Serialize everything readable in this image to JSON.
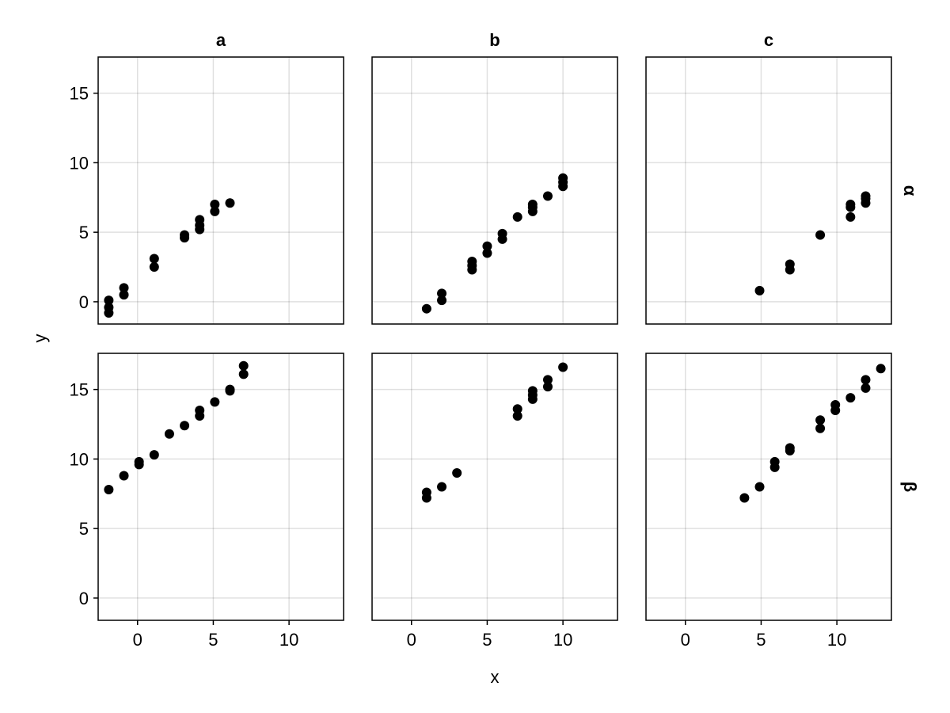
{
  "chart_data": {
    "type": "scatter",
    "xlabel": "x",
    "ylabel": "y",
    "xlim": [
      -2.6,
      13.6
    ],
    "ylim": [
      -1.6,
      17.6
    ],
    "xticks": [
      0,
      5,
      10
    ],
    "yticks": [
      0,
      5,
      10,
      15
    ],
    "grid": true,
    "column_titles": [
      "a",
      "b",
      "c"
    ],
    "row_titles": [
      "α",
      "β"
    ],
    "facets": [
      {
        "row": "α",
        "col": "a",
        "points": [
          [
            -1.9,
            -0.8
          ],
          [
            -1.9,
            -0.4
          ],
          [
            -1.9,
            0.1
          ],
          [
            -0.9,
            0.5
          ],
          [
            -0.9,
            1.0
          ],
          [
            1.1,
            2.5
          ],
          [
            1.1,
            3.1
          ],
          [
            3.1,
            4.6
          ],
          [
            3.1,
            4.8
          ],
          [
            4.1,
            5.2
          ],
          [
            4.1,
            5.5
          ],
          [
            4.1,
            5.9
          ],
          [
            5.1,
            6.5
          ],
          [
            5.1,
            7.0
          ],
          [
            6.1,
            7.1
          ]
        ]
      },
      {
        "row": "α",
        "col": "b",
        "points": [
          [
            1.0,
            -0.5
          ],
          [
            2.0,
            0.1
          ],
          [
            2.0,
            0.6
          ],
          [
            4.0,
            2.3
          ],
          [
            4.0,
            2.6
          ],
          [
            4.0,
            2.9
          ],
          [
            5.0,
            3.5
          ],
          [
            5.0,
            4.0
          ],
          [
            6.0,
            4.5
          ],
          [
            6.0,
            4.9
          ],
          [
            7.0,
            6.1
          ],
          [
            8.0,
            6.5
          ],
          [
            8.0,
            6.8
          ],
          [
            8.0,
            7.0
          ],
          [
            9.0,
            7.6
          ],
          [
            10.0,
            8.3
          ],
          [
            10.0,
            8.6
          ],
          [
            10.0,
            8.9
          ]
        ]
      },
      {
        "row": "α",
        "col": "c",
        "points": [
          [
            4.9,
            0.8
          ],
          [
            6.9,
            2.3
          ],
          [
            6.9,
            2.7
          ],
          [
            8.9,
            4.8
          ],
          [
            10.9,
            6.1
          ],
          [
            10.9,
            6.8
          ],
          [
            10.9,
            7.0
          ],
          [
            11.9,
            7.1
          ],
          [
            11.9,
            7.4
          ],
          [
            11.9,
            7.6
          ]
        ]
      },
      {
        "row": "β",
        "col": "a",
        "points": [
          [
            -1.9,
            7.8
          ],
          [
            -0.9,
            8.8
          ],
          [
            0.1,
            9.6
          ],
          [
            0.1,
            9.8
          ],
          [
            1.1,
            10.3
          ],
          [
            2.1,
            11.8
          ],
          [
            3.1,
            12.4
          ],
          [
            4.1,
            13.1
          ],
          [
            4.1,
            13.5
          ],
          [
            5.1,
            14.1
          ],
          [
            6.1,
            14.9
          ],
          [
            6.1,
            15.0
          ],
          [
            7.0,
            16.1
          ],
          [
            7.0,
            16.7
          ]
        ]
      },
      {
        "row": "β",
        "col": "b",
        "points": [
          [
            1.0,
            7.2
          ],
          [
            1.0,
            7.6
          ],
          [
            2.0,
            8.0
          ],
          [
            3.0,
            9.0
          ],
          [
            7.0,
            13.1
          ],
          [
            7.0,
            13.6
          ],
          [
            8.0,
            14.3
          ],
          [
            8.0,
            14.6
          ],
          [
            8.0,
            14.9
          ],
          [
            9.0,
            15.2
          ],
          [
            9.0,
            15.7
          ],
          [
            10.0,
            16.6
          ]
        ]
      },
      {
        "row": "β",
        "col": "c",
        "points": [
          [
            3.9,
            7.2
          ],
          [
            4.9,
            8.0
          ],
          [
            5.9,
            9.4
          ],
          [
            5.9,
            9.8
          ],
          [
            6.9,
            10.6
          ],
          [
            6.9,
            10.8
          ],
          [
            8.9,
            12.2
          ],
          [
            8.9,
            12.8
          ],
          [
            9.9,
            13.5
          ],
          [
            9.9,
            13.9
          ],
          [
            10.9,
            14.4
          ],
          [
            11.9,
            15.1
          ],
          [
            11.9,
            15.7
          ],
          [
            12.9,
            16.5
          ]
        ]
      }
    ]
  }
}
